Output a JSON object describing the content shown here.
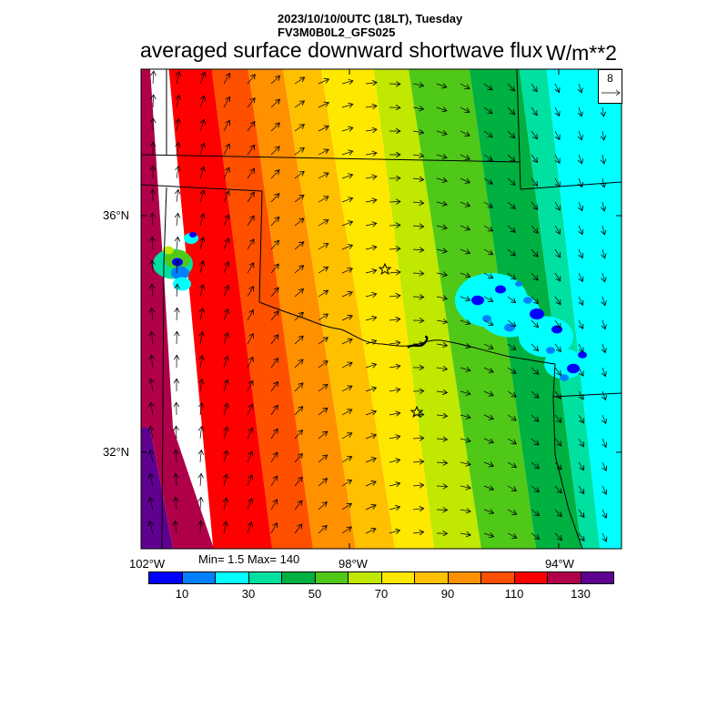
{
  "header": {
    "line1": "2023/10/10/0UTC (18LT), Tuesday",
    "line2": "FV3M0B0L2_GFS025"
  },
  "title": "averaged surface downward shortwave flux",
  "units": "W/m**2",
  "vector_reference": "8",
  "axes": {
    "lat_labels": [
      "36°N",
      "32°N"
    ],
    "lon_labels": [
      "102°W",
      "98°W",
      "94°W"
    ]
  },
  "stats": "Min= 1.5 Max= 140",
  "colorbar": {
    "colors": [
      "#0000ff",
      "#0080ff",
      "#00ffff",
      "#00e0a0",
      "#00b040",
      "#50c818",
      "#c0e800",
      "#ffe800",
      "#ffc000",
      "#ff9000",
      "#ff5000",
      "#ff0000",
      "#b0004a",
      "#600090"
    ],
    "labels": [
      "10",
      "30",
      "50",
      "70",
      "90",
      "110",
      "130"
    ]
  },
  "map": {
    "field_bands": [
      {
        "value": 130,
        "color": "#600090"
      },
      {
        "value": 120,
        "color": "#b0004a"
      },
      {
        "value": 110,
        "color": "#ff0000"
      },
      {
        "value": 100,
        "color": "#ff5000"
      },
      {
        "value": 90,
        "color": "#ff9000"
      },
      {
        "value": 80,
        "color": "#ffc000"
      },
      {
        "value": 70,
        "color": "#ffe800"
      },
      {
        "value": 60,
        "color": "#c0e800"
      },
      {
        "value": 50,
        "color": "#50c818"
      },
      {
        "value": 40,
        "color": "#00b040"
      },
      {
        "value": 30,
        "color": "#00e0a0"
      },
      {
        "value": 20,
        "color": "#00ffff"
      }
    ],
    "markers": [
      "city-star",
      "city-star"
    ]
  }
}
